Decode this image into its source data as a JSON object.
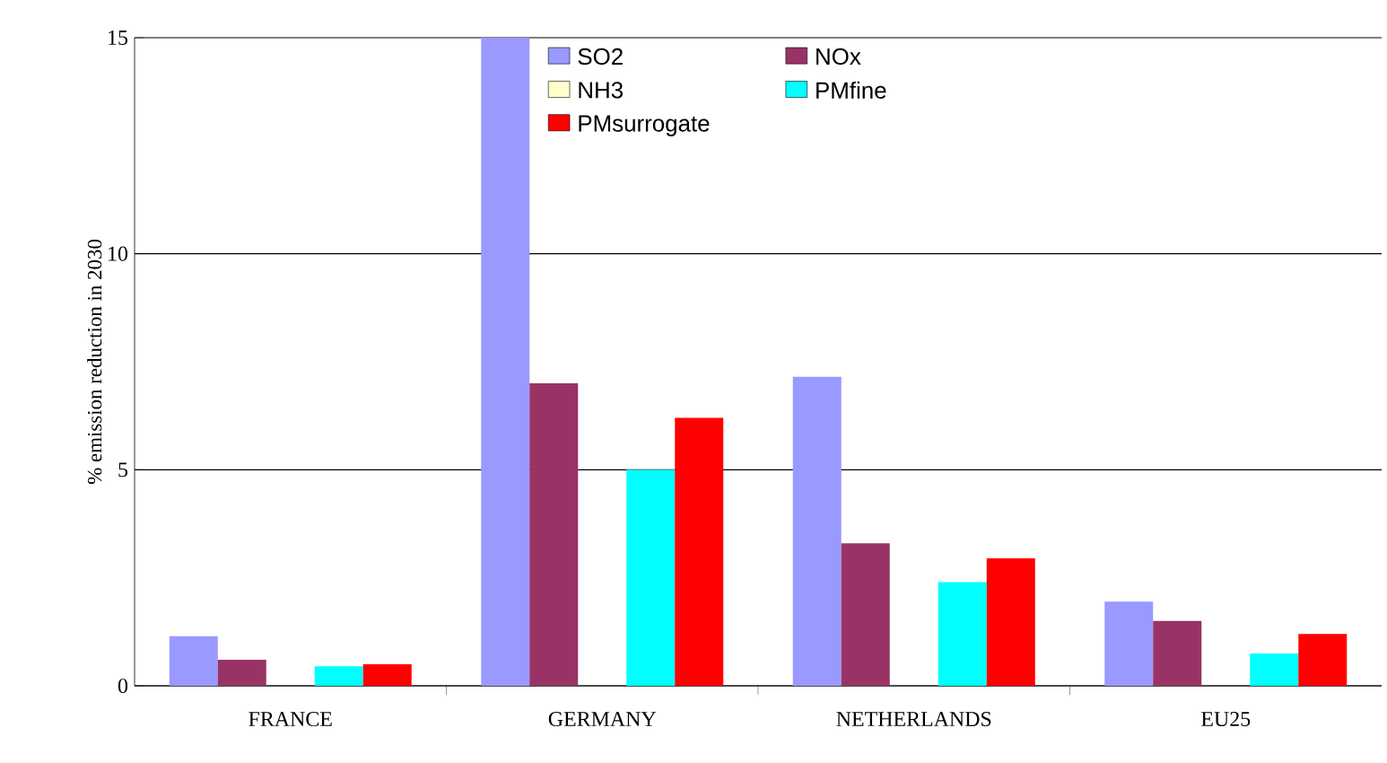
{
  "chart_data": {
    "type": "bar",
    "ylabel": "% emission reduction in 2030",
    "categories": [
      "FRANCE",
      "GERMANY",
      "NETHERLANDS",
      "EU25"
    ],
    "series": [
      {
        "name": "SO2",
        "color": "#9999ff",
        "values": [
          1.15,
          15,
          7.15,
          1.95
        ]
      },
      {
        "name": "NOx",
        "color": "#993366",
        "values": [
          0.6,
          7.0,
          3.3,
          1.5
        ]
      },
      {
        "name": "NH3",
        "color": "#ffffcc",
        "values": [
          null,
          null,
          null,
          null
        ]
      },
      {
        "name": "PMfine",
        "color": "#00ffff",
        "values": [
          0.45,
          5.0,
          2.4,
          0.75
        ]
      },
      {
        "name": "PMsurrogate",
        "color": "#ff0000",
        "values": [
          0.5,
          6.2,
          2.95,
          1.2
        ]
      }
    ],
    "ylim": [
      0,
      15
    ],
    "yticks": [
      0,
      5,
      10,
      15
    ],
    "grid": "y",
    "legend": "top"
  }
}
